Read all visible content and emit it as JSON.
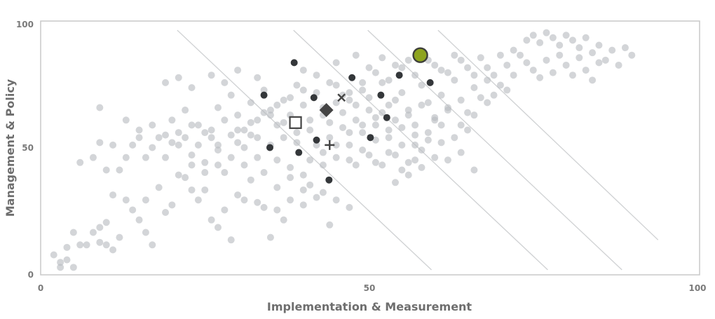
{
  "chart_data": {
    "type": "scatter",
    "title": "",
    "xlabel": "Implementation & Measurement",
    "ylabel": "Management & Policy",
    "xlim": [
      0,
      100
    ],
    "ylim": [
      0,
      100
    ],
    "x_ticks": [
      "0",
      "50",
      "100"
    ],
    "y_ticks": [
      "0",
      "50",
      "100"
    ],
    "grid": false,
    "colors": {
      "points": "#b8bcc0",
      "dark_points": "#34373a",
      "highlight_fill": "#8ea41f",
      "highlight_stroke": "#3e3f3b",
      "diagonal_lines": "#cfd1d3",
      "frame": "#c8c8c8",
      "marker": "#444444"
    },
    "diagonal_lines": [
      {
        "x1": 20.8,
        "y1": 98,
        "x2": 59.5,
        "y2": 2
      },
      {
        "x1": 38.5,
        "y1": 98,
        "x2": 77.2,
        "y2": 2
      },
      {
        "x1": 49.8,
        "y1": 98,
        "x2": 88.5,
        "y2": 2
      },
      {
        "x1": 60.5,
        "y1": 98,
        "x2": 94.0,
        "y2": 14
      }
    ],
    "highlight": {
      "x": 57.8,
      "y": 88
    },
    "markers": {
      "square": {
        "x": 38.8,
        "y": 61
      },
      "diamond": {
        "x": 43.5,
        "y": 66
      },
      "cross_x": {
        "x": 45.8,
        "y": 71
      },
      "plus": {
        "x": 44.0,
        "y": 52
      }
    },
    "dark_points": [
      [
        38.6,
        85
      ],
      [
        47.4,
        79
      ],
      [
        34.0,
        72
      ],
      [
        41.6,
        71
      ],
      [
        51.8,
        72
      ],
      [
        54.6,
        80
      ],
      [
        59.3,
        77
      ],
      [
        52.7,
        63
      ],
      [
        50.2,
        55
      ],
      [
        34.9,
        51
      ],
      [
        39.3,
        49
      ],
      [
        42.0,
        54
      ],
      [
        43.9,
        38
      ]
    ],
    "points": [
      [
        2,
        8
      ],
      [
        3,
        5
      ],
      [
        3,
        3
      ],
      [
        4,
        6
      ],
      [
        5,
        3
      ],
      [
        4,
        11
      ],
      [
        5,
        17
      ],
      [
        6,
        12
      ],
      [
        7,
        12
      ],
      [
        8,
        17
      ],
      [
        9,
        19
      ],
      [
        9,
        13
      ],
      [
        10,
        12
      ],
      [
        11,
        10
      ],
      [
        12,
        15
      ],
      [
        10,
        21
      ],
      [
        11,
        32
      ],
      [
        13,
        30
      ],
      [
        14,
        26
      ],
      [
        15,
        22
      ],
      [
        16,
        30
      ],
      [
        16,
        17
      ],
      [
        17,
        12
      ],
      [
        18,
        35
      ],
      [
        19,
        25
      ],
      [
        20,
        28
      ],
      [
        21,
        40
      ],
      [
        22,
        39
      ],
      [
        23,
        34
      ],
      [
        24,
        30
      ],
      [
        25,
        34
      ],
      [
        26,
        22
      ],
      [
        27,
        19
      ],
      [
        28,
        26
      ],
      [
        29,
        14
      ],
      [
        30,
        32
      ],
      [
        31,
        30
      ],
      [
        32,
        38
      ],
      [
        33,
        29
      ],
      [
        34,
        27
      ],
      [
        35,
        15
      ],
      [
        36,
        26
      ],
      [
        37,
        22
      ],
      [
        38,
        30
      ],
      [
        6,
        45
      ],
      [
        8,
        47
      ],
      [
        9,
        53
      ],
      [
        10,
        42
      ],
      [
        12,
        42
      ],
      [
        13,
        47
      ],
      [
        14,
        52
      ],
      [
        15,
        58
      ],
      [
        16,
        47
      ],
      [
        17,
        51
      ],
      [
        18,
        55
      ],
      [
        19,
        47
      ],
      [
        20,
        53
      ],
      [
        21,
        57
      ],
      [
        22,
        55
      ],
      [
        23,
        48
      ],
      [
        24,
        52
      ],
      [
        25,
        45
      ],
      [
        26,
        55
      ],
      [
        27,
        50
      ],
      [
        28,
        41
      ],
      [
        29,
        47
      ],
      [
        30,
        53
      ],
      [
        31,
        44
      ],
      [
        32,
        56
      ],
      [
        33,
        47
      ],
      [
        34,
        41
      ],
      [
        35,
        52
      ],
      [
        36,
        46
      ],
      [
        37,
        55
      ],
      [
        38,
        43
      ],
      [
        39,
        53
      ],
      [
        40,
        40
      ],
      [
        41,
        46
      ],
      [
        42,
        52
      ],
      [
        43,
        44
      ],
      [
        44,
        55
      ],
      [
        45,
        47
      ],
      [
        46,
        59
      ],
      [
        47,
        52
      ],
      [
        48,
        44
      ],
      [
        49,
        57
      ],
      [
        50,
        48
      ],
      [
        51,
        54
      ],
      [
        52,
        44
      ],
      [
        53,
        58
      ],
      [
        54,
        48
      ],
      [
        55,
        52
      ],
      [
        56,
        45
      ],
      [
        57,
        56
      ],
      [
        58,
        50
      ],
      [
        59,
        54
      ],
      [
        60,
        47
      ],
      [
        61,
        53
      ],
      [
        62,
        46
      ],
      [
        63,
        55
      ],
      [
        64,
        49
      ],
      [
        65,
        58
      ],
      [
        66,
        42
      ],
      [
        20,
        62
      ],
      [
        22,
        66
      ],
      [
        24,
        60
      ],
      [
        26,
        58
      ],
      [
        27,
        67
      ],
      [
        28,
        62
      ],
      [
        29,
        72
      ],
      [
        30,
        64
      ],
      [
        31,
        58
      ],
      [
        32,
        69
      ],
      [
        33,
        62
      ],
      [
        34,
        74
      ],
      [
        35,
        66
      ],
      [
        36,
        60
      ],
      [
        37,
        70
      ],
      [
        38,
        64
      ],
      [
        39,
        76
      ],
      [
        40,
        68
      ],
      [
        41,
        62
      ],
      [
        42,
        73
      ],
      [
        43,
        67
      ],
      [
        44,
        61
      ],
      [
        45,
        76
      ],
      [
        46,
        65
      ],
      [
        47,
        70
      ],
      [
        48,
        62
      ],
      [
        49,
        74
      ],
      [
        50,
        66
      ],
      [
        51,
        60
      ],
      [
        52,
        77
      ],
      [
        53,
        68
      ],
      [
        54,
        62
      ],
      [
        55,
        73
      ],
      [
        56,
        66
      ],
      [
        57,
        60
      ],
      [
        58,
        76
      ],
      [
        59,
        69
      ],
      [
        60,
        63
      ],
      [
        61,
        72
      ],
      [
        62,
        66
      ],
      [
        63,
        78
      ],
      [
        64,
        70
      ],
      [
        65,
        65
      ],
      [
        66,
        75
      ],
      [
        67,
        71
      ],
      [
        68,
        78
      ],
      [
        69,
        72
      ],
      [
        70,
        76
      ],
      [
        71,
        74
      ],
      [
        72,
        80
      ],
      [
        19,
        77
      ],
      [
        21,
        79
      ],
      [
        23,
        75
      ],
      [
        26,
        80
      ],
      [
        28,
        77
      ],
      [
        30,
        82
      ],
      [
        33,
        79
      ],
      [
        9,
        67
      ],
      [
        40,
        82
      ],
      [
        45,
        85
      ],
      [
        48,
        88
      ],
      [
        50,
        83
      ],
      [
        52,
        87
      ],
      [
        54,
        84
      ],
      [
        56,
        86
      ],
      [
        58,
        89
      ],
      [
        60,
        84
      ],
      [
        62,
        81
      ],
      [
        64,
        86
      ],
      [
        66,
        80
      ],
      [
        68,
        83
      ],
      [
        70,
        88
      ],
      [
        72,
        90
      ],
      [
        74,
        94
      ],
      [
        75,
        96
      ],
      [
        76,
        93
      ],
      [
        77,
        97
      ],
      [
        78,
        95
      ],
      [
        79,
        92
      ],
      [
        80,
        96
      ],
      [
        81,
        94
      ],
      [
        82,
        91
      ],
      [
        83,
        95
      ],
      [
        84,
        89
      ],
      [
        85,
        92
      ],
      [
        86,
        86
      ],
      [
        87,
        90
      ],
      [
        88,
        84
      ],
      [
        89,
        91
      ],
      [
        90,
        88
      ],
      [
        74,
        85
      ],
      [
        75,
        82
      ],
      [
        76,
        79
      ],
      [
        77,
        86
      ],
      [
        78,
        81
      ],
      [
        79,
        88
      ],
      [
        80,
        84
      ],
      [
        81,
        80
      ],
      [
        82,
        87
      ],
      [
        83,
        82
      ],
      [
        84,
        78
      ],
      [
        85,
        85
      ],
      [
        73,
        88
      ],
      [
        71,
        84
      ],
      [
        69,
        80
      ],
      [
        67,
        87
      ],
      [
        65,
        83
      ],
      [
        63,
        88
      ],
      [
        61,
        82
      ],
      [
        59,
        86
      ],
      [
        57,
        80
      ],
      [
        55,
        83
      ],
      [
        53,
        78
      ],
      [
        51,
        81
      ],
      [
        49,
        77
      ],
      [
        47,
        73
      ],
      [
        45,
        69
      ],
      [
        43,
        64
      ],
      [
        41,
        58
      ],
      [
        39,
        57
      ],
      [
        37,
        61
      ],
      [
        35,
        64
      ],
      [
        33,
        55
      ],
      [
        31,
        51
      ],
      [
        29,
        56
      ],
      [
        27,
        52
      ],
      [
        25,
        57
      ],
      [
        23,
        60
      ],
      [
        21,
        52
      ],
      [
        19,
        56
      ],
      [
        17,
        60
      ],
      [
        15,
        55
      ],
      [
        13,
        62
      ],
      [
        11,
        52
      ],
      [
        46,
        72
      ],
      [
        48,
        68
      ],
      [
        50,
        71
      ],
      [
        52,
        65
      ],
      [
        54,
        70
      ],
      [
        56,
        64
      ],
      [
        58,
        68
      ],
      [
        60,
        62
      ],
      [
        62,
        67
      ],
      [
        64,
        60
      ],
      [
        66,
        64
      ],
      [
        68,
        69
      ],
      [
        44,
        77
      ],
      [
        42,
        80
      ],
      [
        40,
        74
      ],
      [
        38,
        71
      ],
      [
        36,
        68
      ],
      [
        34,
        65
      ],
      [
        32,
        61
      ],
      [
        30,
        58
      ],
      [
        47,
        57
      ],
      [
        49,
        60
      ],
      [
        51,
        63
      ],
      [
        53,
        55
      ],
      [
        55,
        59
      ],
      [
        57,
        52
      ],
      [
        59,
        57
      ],
      [
        61,
        60
      ],
      [
        43,
        49
      ],
      [
        45,
        52
      ],
      [
        47,
        46
      ],
      [
        49,
        50
      ],
      [
        51,
        45
      ],
      [
        53,
        49
      ],
      [
        55,
        42
      ],
      [
        57,
        46
      ],
      [
        41,
        36
      ],
      [
        43,
        33
      ],
      [
        45,
        30
      ],
      [
        47,
        27
      ],
      [
        54,
        37
      ],
      [
        56,
        40
      ],
      [
        58,
        43
      ],
      [
        44,
        20
      ],
      [
        36,
        35
      ],
      [
        38,
        39
      ],
      [
        40,
        34
      ],
      [
        42,
        31
      ],
      [
        40,
        28
      ],
      [
        27,
        44
      ],
      [
        25,
        41
      ],
      [
        23,
        44
      ]
    ]
  }
}
